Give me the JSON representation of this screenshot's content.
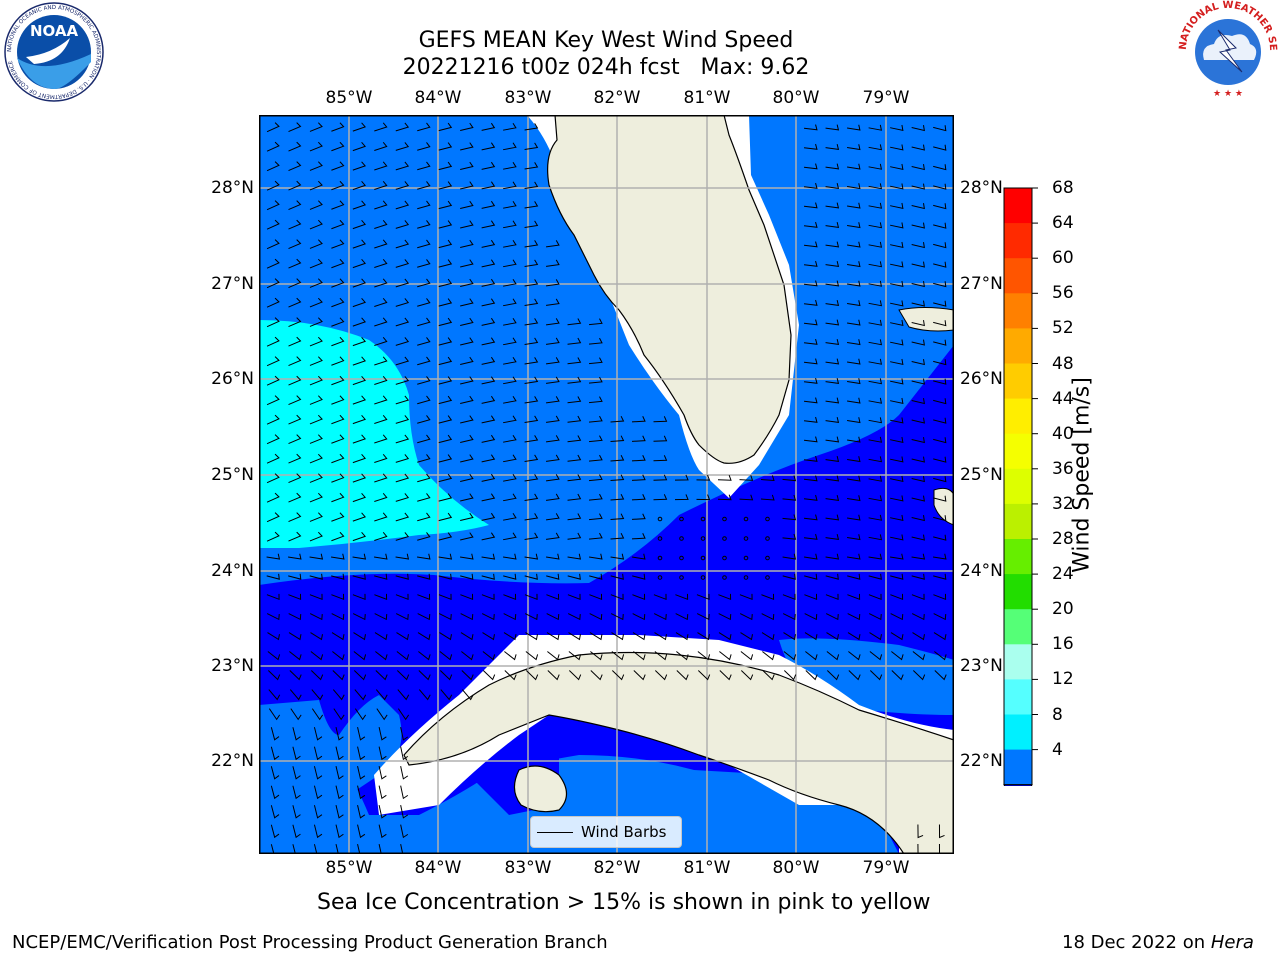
{
  "title": {
    "line1": "GEFS MEAN Key West Wind Speed",
    "line2": "20221216 t00z 024h fcst   Max: 9.62"
  },
  "map": {
    "lon_labels": [
      "85°W",
      "84°W",
      "83°W",
      "82°W",
      "81°W",
      "80°W",
      "79°W"
    ],
    "lat_labels": [
      "28°N",
      "27°N",
      "26°N",
      "25°N",
      "24°N",
      "23°N",
      "22°N"
    ],
    "legend_label": "Wind Barbs",
    "land_color": "#eeeedd"
  },
  "colorbar": {
    "label": "Wind Speed [m/s]",
    "ticks": [
      "68",
      "64",
      "60",
      "56",
      "52",
      "48",
      "44",
      "40",
      "36",
      "32",
      "28",
      "24",
      "20",
      "16",
      "12",
      "8",
      "4"
    ],
    "colors": [
      "#ff0000",
      "#ff2a00",
      "#ff5500",
      "#ff8000",
      "#ffaa00",
      "#ffcc00",
      "#ffee00",
      "#f5ff00",
      "#ddff00",
      "#bbf000",
      "#66ee00",
      "#22dd00",
      "#55ff77",
      "#aaffee",
      "#55ffff",
      "#00f0ff",
      "#0077ff"
    ],
    "under_color": "#0000ff"
  },
  "notes": {
    "sea_ice": "Sea Ice Concentration > 15% is shown in pink to yellow",
    "footer_left": "NCEP/EMC/Verification Post Processing Product Generation Branch",
    "footer_date": "18 Dec 2022 on ",
    "footer_host": "Hera"
  },
  "logos": {
    "noaa_text": "NOAA",
    "noaa_ring": "NATIONAL OCEANIC AND ATMOSPHERIC ADMINISTRATION · U.S. DEPARTMENT OF COMMERCE",
    "nws_ring": "NATIONAL WEATHER SERVICE"
  }
}
